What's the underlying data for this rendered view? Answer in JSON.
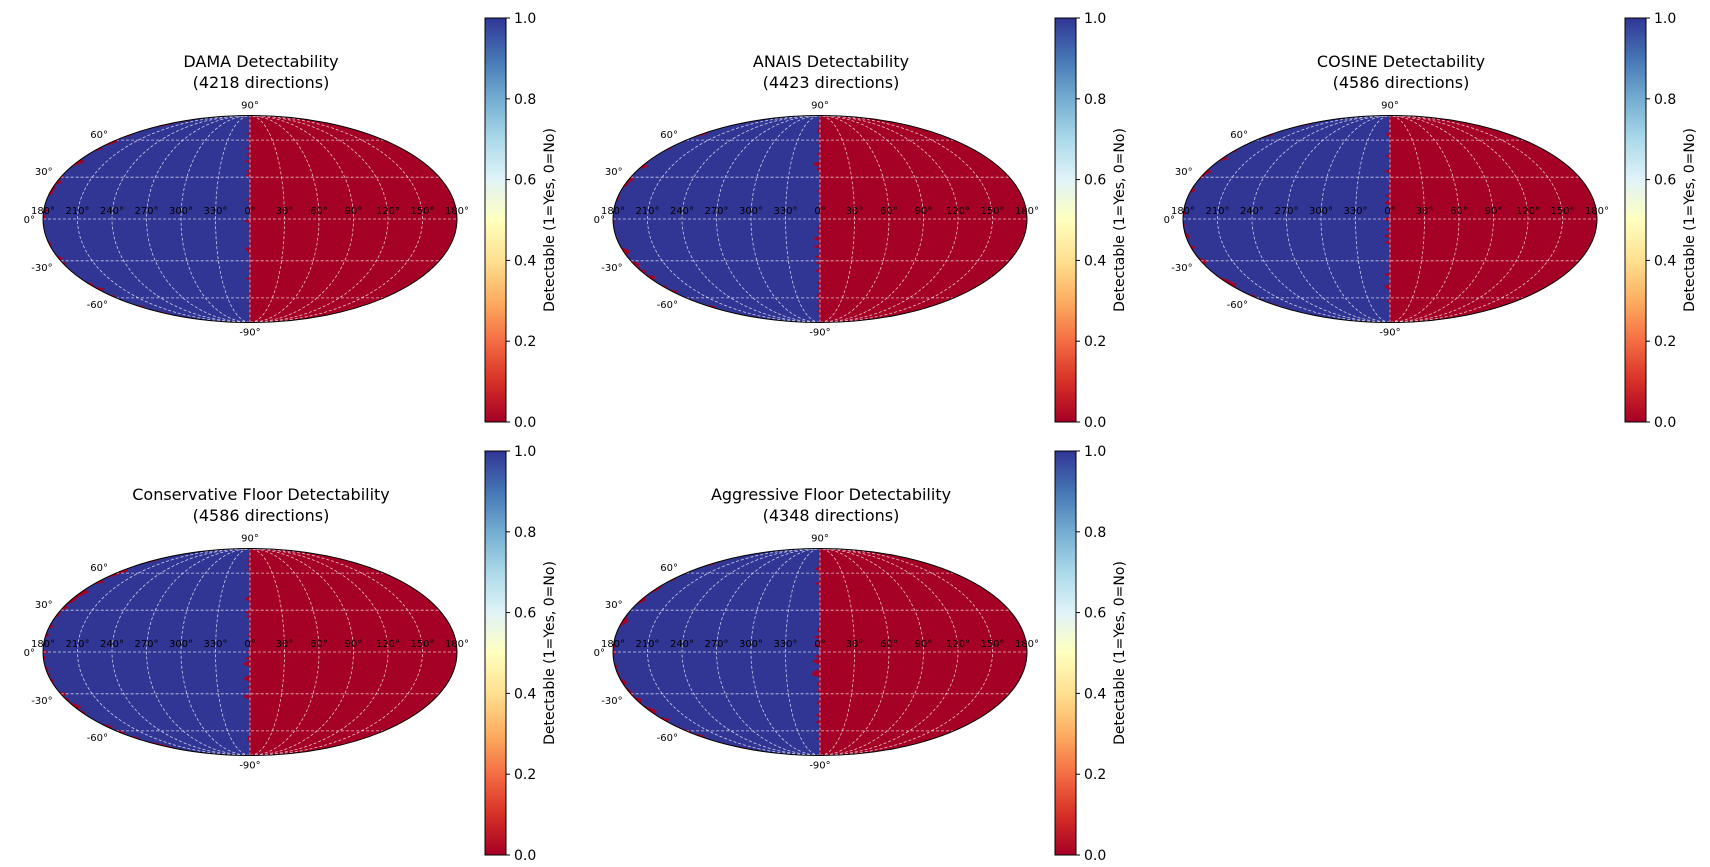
{
  "figure": {
    "colorbar_label": "Detectable (1=Yes, 0=No)",
    "colormap": [
      "#a50026",
      "#d73027",
      "#f46d43",
      "#fdae61",
      "#fee090",
      "#ffffbf",
      "#e0f3f8",
      "#abd9e9",
      "#74add1",
      "#4575b4",
      "#313695"
    ]
  },
  "chart_data": [
    {
      "type": "heatmap",
      "projection": "mollweide",
      "title": "DAMA Detectability",
      "subtitle": "(4218 directions)",
      "detectable_region": "galactic longitude 180°–360° (left hemisphere of map)",
      "lon_tick_labels": [
        "180°",
        "210°",
        "240°",
        "270°",
        "300°",
        "330°",
        "0°",
        "30°",
        "60°",
        "90°",
        "120°",
        "150°",
        "180°"
      ],
      "lat_tick_labels": [
        "90°",
        "60°",
        "30°",
        "0°",
        "-30°",
        "-60°",
        "-90°"
      ],
      "colorbar": {
        "label": "Detectable (1=Yes, 0=No)",
        "ticks": [
          "0.0",
          "0.2",
          "0.4",
          "0.6",
          "0.8",
          "1.0"
        ],
        "range": [
          0,
          1
        ]
      },
      "edge_seed": 3
    },
    {
      "type": "heatmap",
      "projection": "mollweide",
      "title": "ANAIS Detectability",
      "subtitle": "(4423 directions)",
      "detectable_region": "galactic longitude 180°–360° (left hemisphere of map)",
      "lon_tick_labels": [
        "180°",
        "210°",
        "240°",
        "270°",
        "300°",
        "330°",
        "0°",
        "30°",
        "60°",
        "90°",
        "120°",
        "150°",
        "180°"
      ],
      "lat_tick_labels": [
        "90°",
        "60°",
        "30°",
        "0°",
        "-30°",
        "-60°",
        "-90°"
      ],
      "colorbar": {
        "label": "Detectable (1=Yes, 0=No)",
        "ticks": [
          "0.0",
          "0.2",
          "0.4",
          "0.6",
          "0.8",
          "1.0"
        ],
        "range": [
          0,
          1
        ]
      },
      "edge_seed": 7
    },
    {
      "type": "heatmap",
      "projection": "mollweide",
      "title": "COSINE Detectability",
      "subtitle": "(4586 directions)",
      "detectable_region": "galactic longitude 180°–360° (left hemisphere of map)",
      "lon_tick_labels": [
        "180°",
        "210°",
        "240°",
        "270°",
        "300°",
        "330°",
        "0°",
        "30°",
        "60°",
        "90°",
        "120°",
        "150°",
        "180°"
      ],
      "lat_tick_labels": [
        "90°",
        "60°",
        "30°",
        "0°",
        "-30°",
        "-60°",
        "-90°"
      ],
      "colorbar": {
        "label": "Detectable (1=Yes, 0=No)",
        "ticks": [
          "0.0",
          "0.2",
          "0.4",
          "0.6",
          "0.8",
          "1.0"
        ],
        "range": [
          0,
          1
        ]
      },
      "edge_seed": 11
    },
    {
      "type": "heatmap",
      "projection": "mollweide",
      "title": "Conservative Floor Detectability",
      "subtitle": "(4586 directions)",
      "detectable_region": "galactic longitude 180°–360° (left hemisphere of map)",
      "lon_tick_labels": [
        "180°",
        "210°",
        "240°",
        "270°",
        "300°",
        "330°",
        "0°",
        "30°",
        "60°",
        "90°",
        "120°",
        "150°",
        "180°"
      ],
      "lat_tick_labels": [
        "90°",
        "60°",
        "30°",
        "0°",
        "-30°",
        "-60°",
        "-90°"
      ],
      "colorbar": {
        "label": "Detectable (1=Yes, 0=No)",
        "ticks": [
          "0.0",
          "0.2",
          "0.4",
          "0.6",
          "0.8",
          "1.0"
        ],
        "range": [
          0,
          1
        ]
      },
      "edge_seed": 13
    },
    {
      "type": "heatmap",
      "projection": "mollweide",
      "title": "Aggressive Floor Detectability",
      "subtitle": "(4348 directions)",
      "detectable_region": "galactic longitude 180°–360° (left hemisphere of map)",
      "lon_tick_labels": [
        "180°",
        "210°",
        "240°",
        "270°",
        "300°",
        "330°",
        "0°",
        "30°",
        "60°",
        "90°",
        "120°",
        "150°",
        "180°"
      ],
      "lat_tick_labels": [
        "90°",
        "60°",
        "30°",
        "0°",
        "-30°",
        "-60°",
        "-90°"
      ],
      "colorbar": {
        "label": "Detectable (1=Yes, 0=No)",
        "ticks": [
          "0.0",
          "0.2",
          "0.4",
          "0.6",
          "0.8",
          "1.0"
        ],
        "range": [
          0,
          1
        ]
      },
      "edge_seed": 17
    }
  ]
}
